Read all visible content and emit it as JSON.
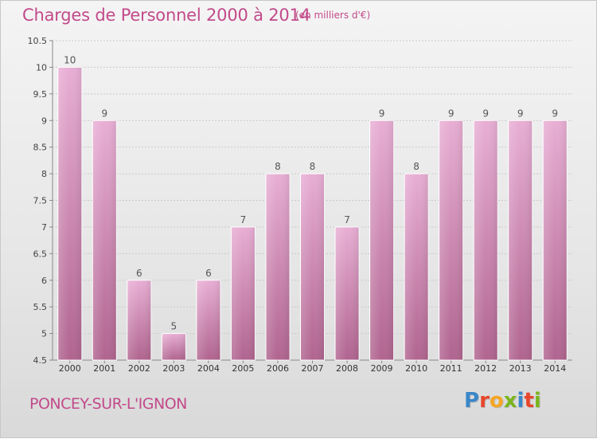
{
  "header": {
    "title": "Charges de Personnel 2000 à 2014",
    "subtitle": "(en milliers d'€)"
  },
  "footer": {
    "commune": "PONCEY-SUR-L'IGNON",
    "logo_text": "Proxiti",
    "logo_colors": [
      "#3a87c8",
      "#e8462a",
      "#f5a623",
      "#7ab51d",
      "#3a87c8",
      "#e8462a",
      "#7ab51d"
    ]
  },
  "colors": {
    "bar_top": "#e8aed4",
    "bar_bottom": "#b0648f",
    "title": "#c24a8a"
  },
  "chart_data": {
    "type": "bar",
    "categories": [
      "2000",
      "2001",
      "2002",
      "2003",
      "2004",
      "2005",
      "2006",
      "2007",
      "2008",
      "2009",
      "2010",
      "2011",
      "2012",
      "2013",
      "2014"
    ],
    "values": [
      10,
      9,
      6,
      5,
      6,
      7,
      8,
      8,
      7,
      9,
      8,
      9,
      9,
      9,
      9
    ],
    "data_labels": [
      "10",
      "9",
      "6",
      "5",
      "6",
      "7",
      "8",
      "8",
      "7",
      "9",
      "8",
      "9",
      "9",
      "9",
      "9"
    ],
    "ylim": [
      4.5,
      10.5
    ],
    "yticks": [
      "4.5",
      "5",
      "5.5",
      "6",
      "6.5",
      "7",
      "7.5",
      "8",
      "8.5",
      "9",
      "9.5",
      "10",
      "10.5"
    ],
    "grid": true,
    "legend": "none",
    "xlabel": "",
    "ylabel": ""
  }
}
